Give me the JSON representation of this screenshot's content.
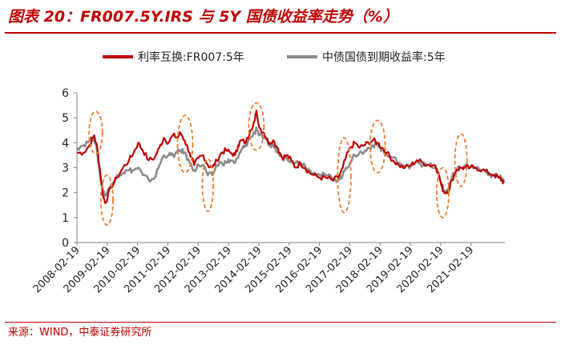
{
  "title": "图表 20：FR007.5Y.IRS 与 5Y 国债收益率走势（%）",
  "source": "来源：WIND，中泰证券研究所",
  "colors": {
    "series1": "#c00000",
    "series2": "#8c8c8c",
    "highlight": "#ed7d31",
    "axis": "#808080"
  },
  "chart_data": {
    "type": "line",
    "ylim": [
      0,
      6
    ],
    "yticks": [
      "0",
      "1",
      "2",
      "3",
      "4",
      "5",
      "6"
    ],
    "xticks": [
      "2008-02-19",
      "2009-02-19",
      "2010-02-19",
      "2011-02-19",
      "2012-02-19",
      "2013-02-19",
      "2014-02-19",
      "2015-02-19",
      "2016-02-19",
      "2017-02-19",
      "2018-02-19",
      "2019-02-19",
      "2020-02-19",
      "2021-02-19"
    ],
    "series": [
      {
        "name": "利率互换:FR007:5年",
        "points": [
          [
            2008.13,
            3.6
          ],
          [
            2008.35,
            3.6
          ],
          [
            2008.55,
            3.9
          ],
          [
            2008.7,
            4.3
          ],
          [
            2008.8,
            3.8
          ],
          [
            2008.9,
            2.8
          ],
          [
            2009.0,
            1.8
          ],
          [
            2009.08,
            1.6
          ],
          [
            2009.25,
            2.2
          ],
          [
            2009.45,
            2.6
          ],
          [
            2009.65,
            3.0
          ],
          [
            2009.85,
            3.3
          ],
          [
            2010.0,
            3.6
          ],
          [
            2010.15,
            4.0
          ],
          [
            2010.3,
            3.7
          ],
          [
            2010.5,
            3.3
          ],
          [
            2010.7,
            3.4
          ],
          [
            2010.85,
            3.8
          ],
          [
            2011.0,
            4.2
          ],
          [
            2011.15,
            4.0
          ],
          [
            2011.3,
            4.3
          ],
          [
            2011.45,
            4.2
          ],
          [
            2011.55,
            4.4
          ],
          [
            2011.68,
            4.1
          ],
          [
            2011.85,
            3.6
          ],
          [
            2012.0,
            3.1
          ],
          [
            2012.15,
            3.4
          ],
          [
            2012.3,
            3.5
          ],
          [
            2012.45,
            3.1
          ],
          [
            2012.6,
            3.0
          ],
          [
            2012.75,
            3.3
          ],
          [
            2012.9,
            3.6
          ],
          [
            2013.05,
            3.7
          ],
          [
            2013.2,
            3.6
          ],
          [
            2013.35,
            3.5
          ],
          [
            2013.45,
            3.9
          ],
          [
            2013.55,
            4.1
          ],
          [
            2013.7,
            4.0
          ],
          [
            2013.85,
            4.5
          ],
          [
            2014.0,
            4.9
          ],
          [
            2014.05,
            5.3
          ],
          [
            2014.15,
            4.6
          ],
          [
            2014.3,
            4.4
          ],
          [
            2014.45,
            4.0
          ],
          [
            2014.6,
            4.1
          ],
          [
            2014.75,
            3.8
          ],
          [
            2014.9,
            3.4
          ],
          [
            2015.05,
            3.5
          ],
          [
            2015.2,
            3.3
          ],
          [
            2015.35,
            3.0
          ],
          [
            2015.5,
            3.2
          ],
          [
            2015.65,
            3.0
          ],
          [
            2015.8,
            2.8
          ],
          [
            2015.95,
            2.7
          ],
          [
            2016.15,
            2.6
          ],
          [
            2016.35,
            2.6
          ],
          [
            2016.55,
            2.5
          ],
          [
            2016.75,
            2.6
          ],
          [
            2016.9,
            3.0
          ],
          [
            2017.0,
            3.4
          ],
          [
            2017.15,
            3.8
          ],
          [
            2017.3,
            4.0
          ],
          [
            2017.45,
            3.8
          ],
          [
            2017.6,
            3.9
          ],
          [
            2017.75,
            4.0
          ],
          [
            2017.9,
            4.1
          ],
          [
            2018.05,
            4.0
          ],
          [
            2018.2,
            3.8
          ],
          [
            2018.35,
            3.6
          ],
          [
            2018.55,
            3.3
          ],
          [
            2018.75,
            3.1
          ],
          [
            2018.95,
            3.0
          ],
          [
            2019.15,
            3.1
          ],
          [
            2019.35,
            3.3
          ],
          [
            2019.55,
            3.2
          ],
          [
            2019.75,
            3.1
          ],
          [
            2019.95,
            3.1
          ],
          [
            2020.05,
            2.8
          ],
          [
            2020.15,
            2.3
          ],
          [
            2020.25,
            2.0
          ],
          [
            2020.4,
            2.1
          ],
          [
            2020.5,
            2.5
          ],
          [
            2020.65,
            2.9
          ],
          [
            2020.8,
            3.0
          ],
          [
            2020.95,
            3.0
          ],
          [
            2021.1,
            3.0
          ],
          [
            2021.3,
            3.0
          ],
          [
            2021.5,
            2.9
          ],
          [
            2021.7,
            2.8
          ],
          [
            2021.9,
            2.7
          ],
          [
            2022.05,
            2.6
          ],
          [
            2022.15,
            2.5
          ],
          [
            2022.22,
            2.4
          ]
        ]
      },
      {
        "name": "中债国债到期收益率:5年",
        "points": [
          [
            2008.13,
            3.8
          ],
          [
            2008.35,
            3.9
          ],
          [
            2008.55,
            4.1
          ],
          [
            2008.7,
            4.2
          ],
          [
            2008.8,
            3.6
          ],
          [
            2008.9,
            2.6
          ],
          [
            2009.0,
            2.0
          ],
          [
            2009.08,
            1.9
          ],
          [
            2009.25,
            2.3
          ],
          [
            2009.45,
            2.7
          ],
          [
            2009.65,
            2.8
          ],
          [
            2009.85,
            2.9
          ],
          [
            2010.0,
            2.9
          ],
          [
            2010.15,
            3.0
          ],
          [
            2010.3,
            2.7
          ],
          [
            2010.5,
            2.5
          ],
          [
            2010.7,
            2.6
          ],
          [
            2010.85,
            3.1
          ],
          [
            2011.0,
            3.5
          ],
          [
            2011.15,
            3.5
          ],
          [
            2011.3,
            3.5
          ],
          [
            2011.45,
            3.6
          ],
          [
            2011.55,
            3.7
          ],
          [
            2011.68,
            3.6
          ],
          [
            2011.85,
            3.2
          ],
          [
            2012.0,
            2.9
          ],
          [
            2012.15,
            3.1
          ],
          [
            2012.3,
            3.1
          ],
          [
            2012.45,
            2.7
          ],
          [
            2012.6,
            2.7
          ],
          [
            2012.75,
            3.1
          ],
          [
            2012.9,
            3.2
          ],
          [
            2013.05,
            3.2
          ],
          [
            2013.2,
            3.3
          ],
          [
            2013.35,
            3.2
          ],
          [
            2013.45,
            3.4
          ],
          [
            2013.55,
            3.7
          ],
          [
            2013.7,
            3.9
          ],
          [
            2013.85,
            4.2
          ],
          [
            2014.0,
            4.4
          ],
          [
            2014.05,
            4.6
          ],
          [
            2014.15,
            4.3
          ],
          [
            2014.3,
            4.2
          ],
          [
            2014.45,
            3.9
          ],
          [
            2014.6,
            3.9
          ],
          [
            2014.75,
            3.6
          ],
          [
            2014.9,
            3.4
          ],
          [
            2015.05,
            3.4
          ],
          [
            2015.2,
            3.3
          ],
          [
            2015.35,
            3.2
          ],
          [
            2015.5,
            3.2
          ],
          [
            2015.65,
            3.1
          ],
          [
            2015.8,
            2.9
          ],
          [
            2015.95,
            2.8
          ],
          [
            2016.15,
            2.7
          ],
          [
            2016.35,
            2.7
          ],
          [
            2016.55,
            2.6
          ],
          [
            2016.75,
            2.5
          ],
          [
            2016.9,
            2.7
          ],
          [
            2017.0,
            3.0
          ],
          [
            2017.15,
            3.2
          ],
          [
            2017.3,
            3.5
          ],
          [
            2017.45,
            3.6
          ],
          [
            2017.6,
            3.6
          ],
          [
            2017.75,
            3.8
          ],
          [
            2017.9,
            3.9
          ],
          [
            2018.05,
            3.9
          ],
          [
            2018.2,
            3.7
          ],
          [
            2018.35,
            3.5
          ],
          [
            2018.55,
            3.4
          ],
          [
            2018.75,
            3.2
          ],
          [
            2018.95,
            3.0
          ],
          [
            2019.15,
            3.1
          ],
          [
            2019.35,
            3.3
          ],
          [
            2019.55,
            3.1
          ],
          [
            2019.75,
            3.1
          ],
          [
            2019.95,
            3.0
          ],
          [
            2020.05,
            2.8
          ],
          [
            2020.15,
            2.4
          ],
          [
            2020.25,
            2.0
          ],
          [
            2020.4,
            2.2
          ],
          [
            2020.5,
            2.6
          ],
          [
            2020.65,
            2.9
          ],
          [
            2020.8,
            3.0
          ],
          [
            2020.95,
            3.1
          ],
          [
            2021.1,
            3.0
          ],
          [
            2021.3,
            3.0
          ],
          [
            2021.5,
            2.9
          ],
          [
            2021.7,
            2.7
          ],
          [
            2021.9,
            2.7
          ],
          [
            2022.05,
            2.6
          ],
          [
            2022.15,
            2.6
          ],
          [
            2022.22,
            2.5
          ]
        ]
      }
    ],
    "highlights": [
      {
        "cx": 2008.75,
        "cy": 4.4,
        "rx": 0.22,
        "ry": 0.85
      },
      {
        "cx": 2009.12,
        "cy": 1.7,
        "rx": 0.2,
        "ry": 1.0
      },
      {
        "cx": 2011.7,
        "cy": 3.95,
        "rx": 0.25,
        "ry": 1.15
      },
      {
        "cx": 2012.45,
        "cy": 2.3,
        "rx": 0.18,
        "ry": 1.05
      },
      {
        "cx": 2014.05,
        "cy": 4.65,
        "rx": 0.25,
        "ry": 0.95
      },
      {
        "cx": 2016.95,
        "cy": 2.7,
        "rx": 0.22,
        "ry": 1.5
      },
      {
        "cx": 2018.05,
        "cy": 3.85,
        "rx": 0.25,
        "ry": 1.05
      },
      {
        "cx": 2020.2,
        "cy": 2.0,
        "rx": 0.2,
        "ry": 1.0
      },
      {
        "cx": 2020.8,
        "cy": 3.3,
        "rx": 0.2,
        "ry": 1.05
      }
    ]
  }
}
